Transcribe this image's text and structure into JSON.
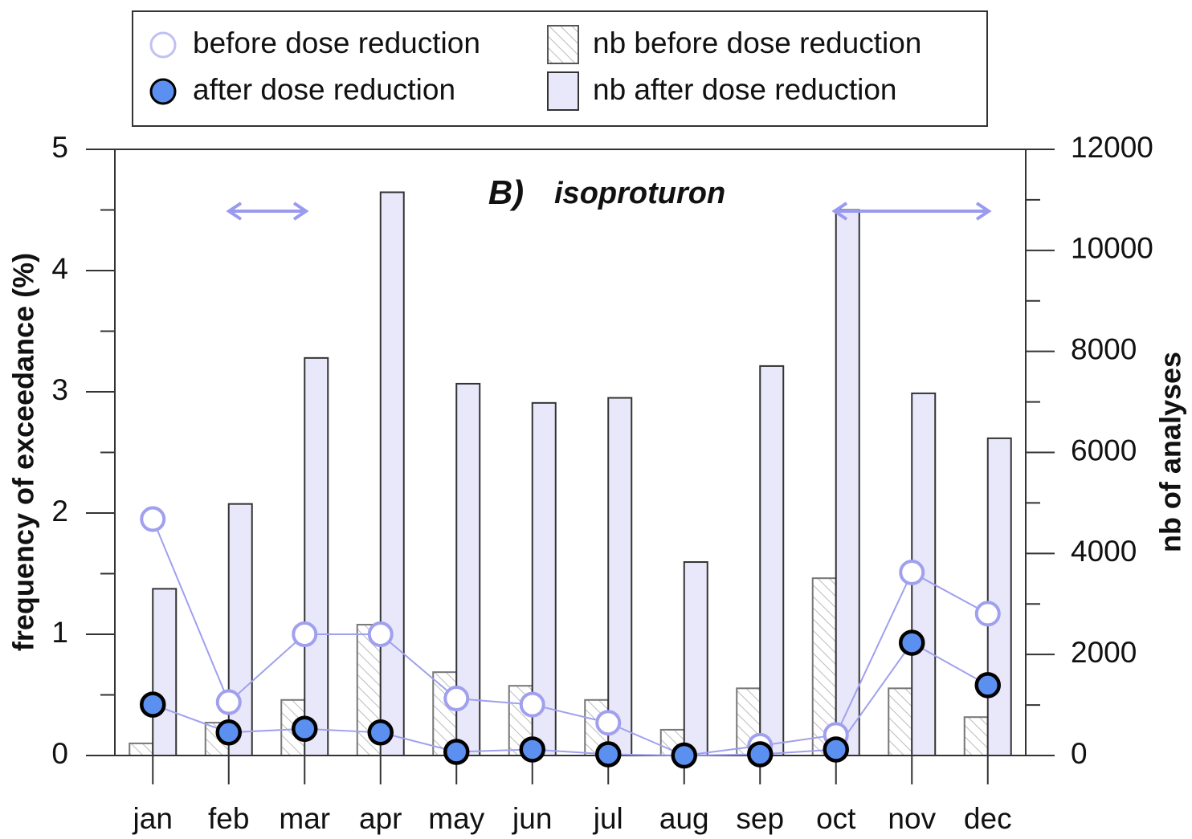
{
  "chart_data": {
    "type": "bar",
    "panel_label": "B)",
    "title": "isoproturon",
    "ylabel": "frequency of exceedance (%)",
    "y2label": "nb of analyses",
    "categories": [
      "jan",
      "feb",
      "mar",
      "apr",
      "may",
      "jun",
      "jul",
      "aug",
      "sep",
      "oct",
      "nov",
      "dec"
    ],
    "ylim": [
      0,
      5
    ],
    "yticks": [
      0,
      1,
      2,
      3,
      4,
      5
    ],
    "y2lim": [
      0,
      12000
    ],
    "y2ticks": [
      0,
      2000,
      4000,
      6000,
      8000,
      10000,
      12000
    ],
    "series": [
      {
        "name": "nb before dose reduction",
        "type": "bar",
        "axis": "y2",
        "color": "#9a9a9a",
        "values": [
          240,
          650,
          1100,
          2590,
          1650,
          1380,
          1100,
          510,
          1330,
          3510,
          1330,
          760
        ]
      },
      {
        "name": "nb after dose reduction",
        "type": "bar",
        "axis": "y2",
        "color": "#e8e8fa",
        "values": [
          3300,
          4980,
          7870,
          11150,
          7360,
          6980,
          7080,
          3830,
          7710,
          10800,
          7170,
          6280
        ]
      },
      {
        "name": "before dose reduction",
        "type": "line",
        "axis": "y",
        "color": "#a0a0ee",
        "values": [
          1.95,
          0.44,
          1.0,
          1.0,
          0.47,
          0.42,
          0.27,
          0,
          0.08,
          0.17,
          1.51,
          1.17
        ]
      },
      {
        "name": "after dose reduction",
        "type": "line",
        "axis": "y",
        "color": "#5b8ff0",
        "values": [
          0.42,
          0.19,
          0.22,
          0.19,
          0.03,
          0.05,
          0.01,
          0,
          0.01,
          0.05,
          0.93,
          0.58
        ]
      }
    ]
  }
}
